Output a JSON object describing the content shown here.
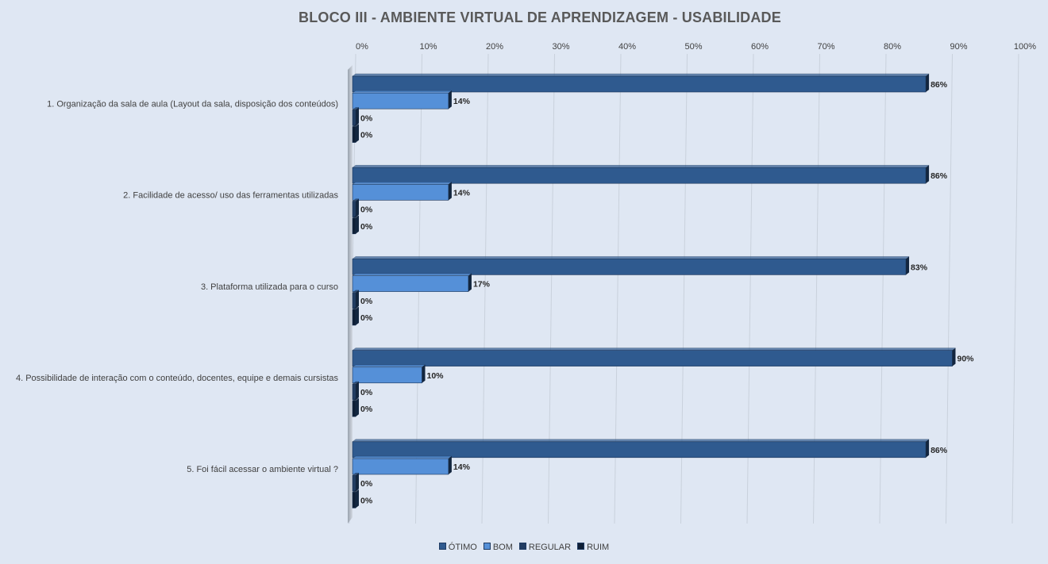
{
  "chart_data": {
    "type": "bar",
    "orientation": "horizontal",
    "title": "BLOCO III - AMBIENTE VIRTUAL DE APRENDIZAGEM - USABILIDADE",
    "categories": [
      "1. Organização da sala de aula (Layout da sala, disposição dos conteúdos)",
      "2. Facilidade de acesso/ uso das ferramentas utilizadas",
      "3. Plataforma utilizada para o curso",
      "4. Possibilidade de interação com o conteúdo, docentes, equipe e demais cursistas",
      "5. Foi fácil acessar o ambiente virtual ?"
    ],
    "series": [
      {
        "name": "ÓTIMO",
        "color": "#2f5a8f",
        "values": [
          86,
          86,
          83,
          90,
          86
        ]
      },
      {
        "name": "BOM",
        "color": "#5590d8",
        "values": [
          14,
          14,
          17,
          10,
          14
        ]
      },
      {
        "name": "REGULAR",
        "color": "#223d62",
        "values": [
          0,
          0,
          0,
          0,
          0
        ]
      },
      {
        "name": "RUIM",
        "color": "#0f1f36",
        "values": [
          0,
          0,
          0,
          0,
          0
        ]
      }
    ],
    "x_ticks": [
      "0%",
      "10%",
      "20%",
      "30%",
      "40%",
      "50%",
      "60%",
      "70%",
      "80%",
      "90%",
      "100%"
    ],
    "xlim": [
      0,
      100
    ],
    "value_suffix": "%",
    "grid": true,
    "legend_position": "bottom"
  }
}
